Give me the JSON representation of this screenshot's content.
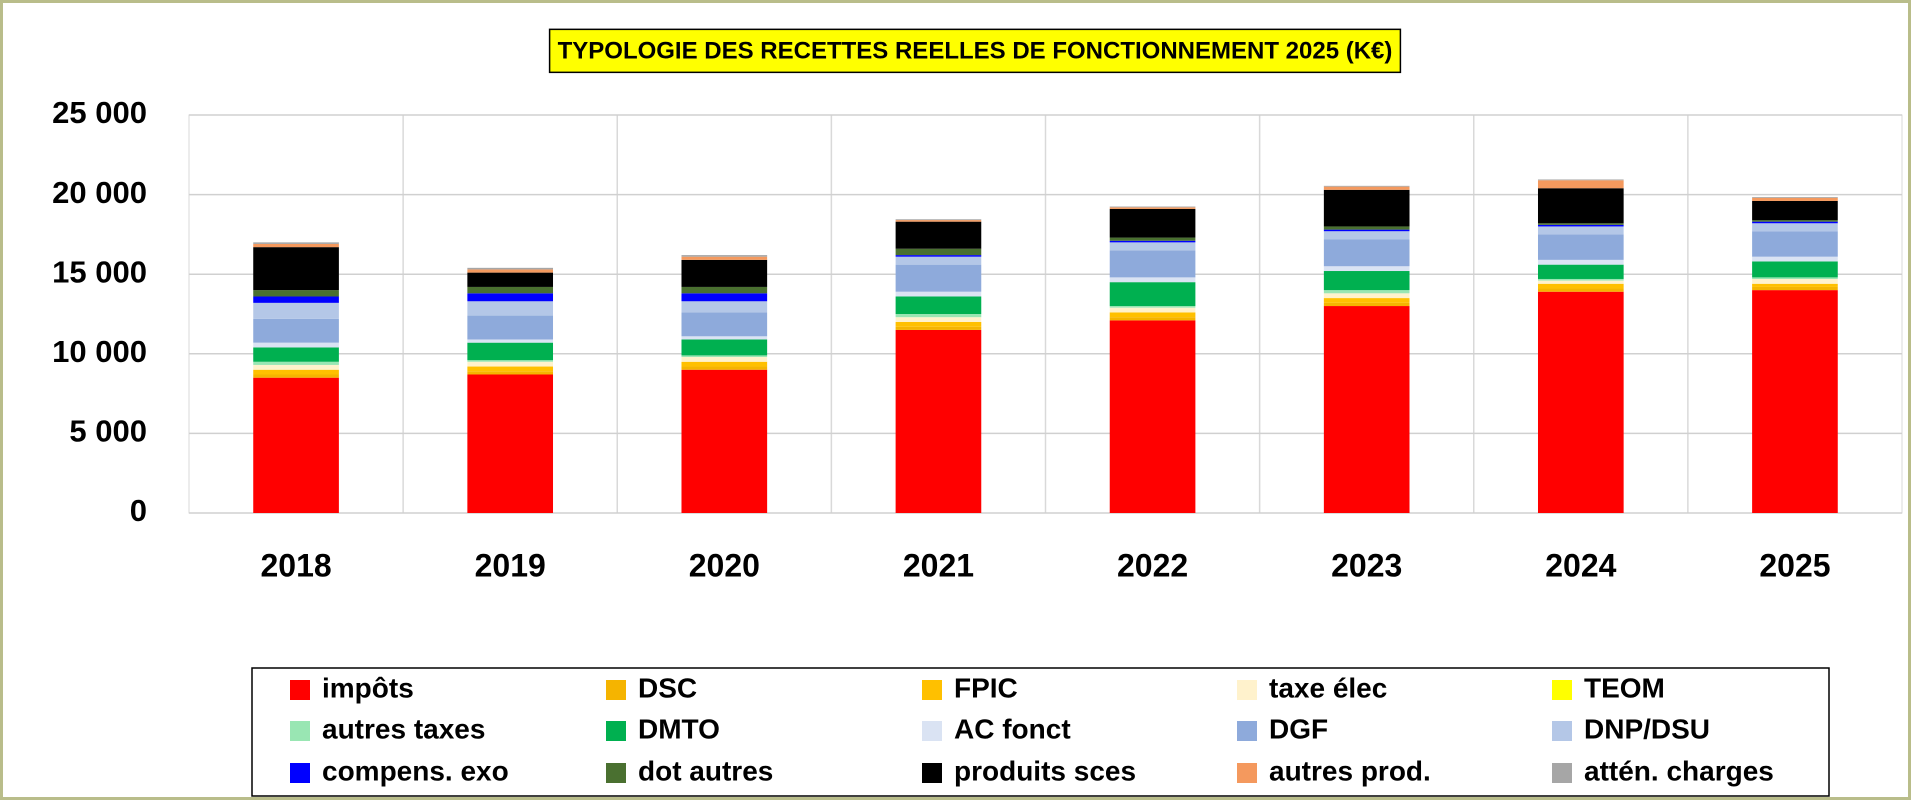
{
  "chart_data": {
    "type": "stacked_bar",
    "title": "TYPOLOGIE DES RECETTES REELLES DE FONCTIONNEMENT 2025 (K€)",
    "categories": [
      "2018",
      "2019",
      "2020",
      "2021",
      "2022",
      "2023",
      "2024",
      "2025"
    ],
    "ylim": [
      0,
      25000
    ],
    "yticks": [
      {
        "value": 0,
        "label": "0"
      },
      {
        "value": 5000,
        "label": "5 000"
      },
      {
        "value": 10000,
        "label": "10 000"
      },
      {
        "value": 15000,
        "label": "15 000"
      },
      {
        "value": 20000,
        "label": "20 000"
      },
      {
        "value": 25000,
        "label": "25 000"
      }
    ],
    "grid": true,
    "legend": "bottom",
    "series": [
      {
        "name": "impôts",
        "color": "#ff0000",
        "values": [
          8500,
          8700,
          9000,
          11500,
          12100,
          13000,
          13900,
          14000
        ]
      },
      {
        "name": "DSC",
        "color": "#f5b400",
        "values": [
          200,
          200,
          200,
          200,
          200,
          200,
          200,
          200
        ]
      },
      {
        "name": "FPIC",
        "color": "#ffc000",
        "values": [
          300,
          300,
          300,
          300,
          300,
          300,
          300,
          200
        ]
      },
      {
        "name": "taxe élec",
        "color": "#fff2cc",
        "values": [
          300,
          300,
          300,
          300,
          300,
          300,
          200,
          300
        ]
      },
      {
        "name": "TEOM",
        "color": "#ffff00",
        "values": [
          0,
          0,
          0,
          0,
          0,
          0,
          0,
          0
        ]
      },
      {
        "name": "autres taxes",
        "color": "#99e6b3",
        "values": [
          200,
          100,
          100,
          200,
          100,
          200,
          100,
          100
        ]
      },
      {
        "name": "DMTO",
        "color": "#00b050",
        "values": [
          900,
          1100,
          1000,
          1100,
          1500,
          1200,
          900,
          1000
        ]
      },
      {
        "name": "AC fonct",
        "color": "#dae3f3",
        "values": [
          300,
          200,
          200,
          300,
          300,
          300,
          300,
          300
        ]
      },
      {
        "name": "DGF",
        "color": "#8eaadb",
        "values": [
          1500,
          1500,
          1500,
          1700,
          1700,
          1700,
          1600,
          1600
        ]
      },
      {
        "name": "DNP/DSU",
        "color": "#b4c7e7",
        "values": [
          1000,
          900,
          700,
          500,
          500,
          500,
          500,
          500
        ]
      },
      {
        "name": "compens. exo",
        "color": "#0000ff",
        "values": [
          400,
          500,
          500,
          100,
          100,
          100,
          100,
          100
        ]
      },
      {
        "name": "dot autres",
        "color": "#4a7030",
        "values": [
          400,
          400,
          400,
          400,
          200,
          200,
          100,
          100
        ]
      },
      {
        "name": "produits sces",
        "color": "#000000",
        "values": [
          2700,
          900,
          1700,
          1700,
          1800,
          2300,
          2200,
          1200
        ]
      },
      {
        "name": "autres prod.",
        "color": "#f4995e",
        "values": [
          200,
          200,
          200,
          100,
          100,
          200,
          500,
          200
        ]
      },
      {
        "name": "attén. charges",
        "color": "#a6a6a6",
        "values": [
          100,
          100,
          100,
          50,
          50,
          50,
          50,
          50
        ]
      }
    ]
  }
}
